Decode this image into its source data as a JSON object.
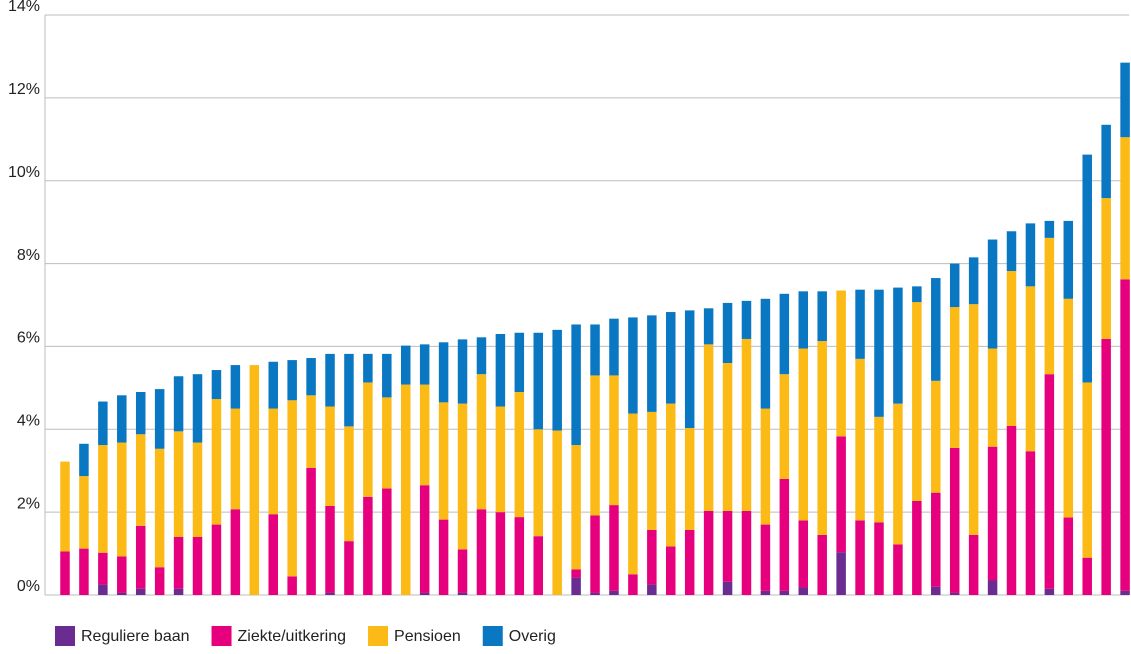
{
  "chart_data": {
    "type": "stacked_bar",
    "categories": [
      null,
      null,
      null,
      null,
      null,
      null,
      null,
      null,
      null,
      null,
      null,
      null,
      null,
      null,
      null,
      null,
      null,
      null,
      null,
      null,
      null,
      null,
      null,
      null,
      null,
      null,
      null,
      null,
      null,
      null,
      null,
      null,
      null,
      null,
      null,
      null,
      null,
      null,
      null,
      null,
      null,
      null,
      null,
      null,
      null,
      null,
      null,
      null,
      null,
      null,
      null,
      null,
      null,
      null,
      null,
      null,
      null
    ],
    "series": [
      {
        "name": "Reguliere baan",
        "color": "#6a2c91",
        "values": [
          0,
          0,
          0.25,
          0.05,
          0.15,
          0,
          0.15,
          0,
          0,
          0,
          0,
          0,
          0,
          0,
          0.05,
          0,
          0,
          0,
          0,
          0.05,
          0,
          0.05,
          0,
          0,
          0,
          0,
          0,
          0.42,
          0.05,
          0.1,
          0,
          0.25,
          0,
          0,
          0,
          0.32,
          0,
          0.1,
          0.1,
          0.18,
          0,
          1.03,
          0,
          0,
          0,
          0,
          0.2,
          0.05,
          0,
          0.35,
          0,
          0,
          0.15,
          0,
          0,
          0,
          0.1
        ]
      },
      {
        "name": "Ziekte/uitkering",
        "color": "#e6007e",
        "values": [
          1.05,
          1.12,
          0.77,
          0.88,
          1.52,
          0.67,
          1.25,
          1.4,
          1.7,
          2.07,
          0,
          1.95,
          0.45,
          3.07,
          2.1,
          1.3,
          2.37,
          2.57,
          0,
          2.6,
          1.82,
          1.05,
          2.07,
          2.0,
          1.88,
          1.42,
          0,
          0.2,
          1.87,
          2.07,
          0.5,
          1.32,
          1.17,
          1.57,
          2.03,
          1.71,
          2.03,
          1.6,
          2.7,
          1.62,
          1.45,
          2.8,
          1.8,
          1.75,
          1.22,
          2.27,
          2.27,
          3.5,
          1.45,
          3.23,
          4.08,
          3.47,
          5.18,
          1.87,
          0.9,
          6.18,
          7.52
        ]
      },
      {
        "name": "Pensioen",
        "color": "#fbba16",
        "values": [
          2.17,
          1.75,
          2.6,
          2.75,
          2.21,
          2.86,
          2.55,
          2.28,
          3.03,
          2.43,
          5.55,
          2.55,
          4.25,
          1.75,
          2.4,
          2.77,
          2.76,
          2.2,
          5.08,
          2.43,
          2.83,
          3.52,
          3.26,
          2.55,
          3.02,
          2.58,
          3.97,
          3.0,
          3.38,
          3.13,
          3.88,
          2.85,
          3.45,
          2.46,
          4.02,
          3.57,
          4.15,
          2.8,
          2.53,
          4.15,
          4.68,
          3.52,
          3.9,
          2.55,
          3.4,
          4.8,
          2.7,
          3.4,
          5.57,
          2.37,
          3.74,
          3.98,
          3.29,
          5.28,
          4.23,
          3.4,
          3.43
        ]
      },
      {
        "name": "Overig",
        "color": "#0a77c2",
        "values": [
          0,
          0.78,
          1.05,
          1.14,
          1.02,
          1.44,
          1.33,
          1.65,
          0.7,
          1.05,
          0,
          1.13,
          0.97,
          0.9,
          1.27,
          1.75,
          0.69,
          1.05,
          0.94,
          0.97,
          1.45,
          1.55,
          0.89,
          1.75,
          1.43,
          2.33,
          2.43,
          2.91,
          1.23,
          1.37,
          2.32,
          2.33,
          2.21,
          2.84,
          0.87,
          1.45,
          0.92,
          2.65,
          1.94,
          1.38,
          1.2,
          0,
          1.67,
          3.07,
          2.8,
          0.38,
          2.48,
          1.05,
          1.13,
          2.63,
          0.96,
          1.52,
          0.41,
          1.88,
          5.5,
          1.77,
          1.8
        ]
      }
    ],
    "ylim": [
      0,
      14
    ],
    "yticks": [
      {
        "value": 0,
        "label": "0%"
      },
      {
        "value": 2,
        "label": "2%"
      },
      {
        "value": 4,
        "label": "4%"
      },
      {
        "value": 6,
        "label": "6%"
      },
      {
        "value": 8,
        "label": "8%"
      },
      {
        "value": 10,
        "label": "10%"
      },
      {
        "value": 12,
        "label": "12%"
      },
      {
        "value": 14,
        "label": "14%"
      }
    ],
    "grid": true,
    "legend": "bottom"
  }
}
